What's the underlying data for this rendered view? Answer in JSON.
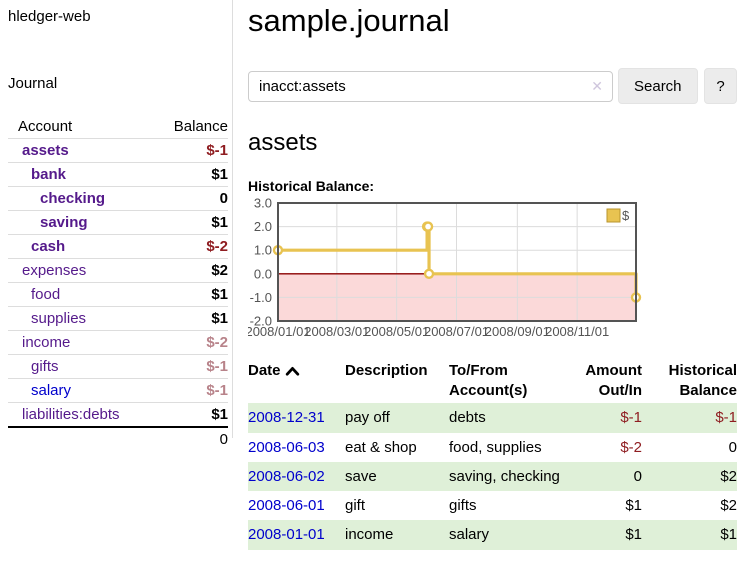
{
  "app": {
    "brand": "hledger-web",
    "nav_journal": "Journal"
  },
  "colors": {
    "link_purple": "#551a8b",
    "link_blue": "#0000cc",
    "negative": "#8f1d21",
    "negative_dim": "#b8838a",
    "row_green": "#dff0d8",
    "text": "#000000",
    "axis_text": "#545454"
  },
  "sidebar": {
    "headers": {
      "account": "Account",
      "balance": "Balance"
    },
    "accounts": [
      {
        "name": "assets",
        "balance": "$-1",
        "depth": 0,
        "bold": true,
        "negative": true,
        "dim": false,
        "link": "purple"
      },
      {
        "name": "bank",
        "balance": "$1",
        "depth": 1,
        "bold": true,
        "negative": false,
        "dim": false,
        "link": "purple"
      },
      {
        "name": "checking",
        "balance": "0",
        "depth": 2,
        "bold": true,
        "negative": false,
        "dim": false,
        "link": "purple"
      },
      {
        "name": "saving",
        "balance": "$1",
        "depth": 2,
        "bold": true,
        "negative": false,
        "dim": false,
        "link": "purple"
      },
      {
        "name": "cash",
        "balance": "$-2",
        "depth": 1,
        "bold": true,
        "negative": true,
        "dim": false,
        "link": "purple"
      },
      {
        "name": "expenses",
        "balance": "$2",
        "depth": 0,
        "bold": false,
        "negative": false,
        "dim": false,
        "link": "purple"
      },
      {
        "name": "food",
        "balance": "$1",
        "depth": 1,
        "bold": false,
        "negative": false,
        "dim": false,
        "link": "purple"
      },
      {
        "name": "supplies",
        "balance": "$1",
        "depth": 1,
        "bold": false,
        "negative": false,
        "dim": false,
        "link": "purple"
      },
      {
        "name": "income",
        "balance": "$-2",
        "depth": 0,
        "bold": false,
        "negative": true,
        "dim": true,
        "link": "purple"
      },
      {
        "name": "gifts",
        "balance": "$-1",
        "depth": 1,
        "bold": false,
        "negative": true,
        "dim": true,
        "link": "purple"
      },
      {
        "name": "salary",
        "balance": "$-1",
        "depth": 1,
        "bold": false,
        "negative": true,
        "dim": true,
        "link": "blue"
      },
      {
        "name": "liabilities:debts",
        "balance": "$1",
        "depth": 0,
        "bold": false,
        "negative": false,
        "dim": false,
        "link": "purple"
      }
    ],
    "total": "0"
  },
  "header": {
    "title": "sample.journal"
  },
  "search": {
    "value": "inacct:assets",
    "clear_icon": "✕",
    "button": "Search",
    "help_button": "?"
  },
  "register": {
    "heading": "assets",
    "chart_label": "Historical Balance:",
    "table": {
      "headers": {
        "date": "Date",
        "description": "Description",
        "tofrom": [
          "To/From",
          "Account(s)"
        ],
        "amount": [
          "Amount",
          "Out/In"
        ],
        "balance": [
          "Historical",
          "Balance"
        ]
      },
      "rows": [
        {
          "date": "2008-12-31",
          "description": "pay off",
          "accounts": "debts",
          "amount": "$-1",
          "amount_negative": true,
          "balance": "$-1",
          "balance_negative": true
        },
        {
          "date": "2008-06-03",
          "description": "eat & shop",
          "accounts": "food, supplies",
          "amount": "$-2",
          "amount_negative": true,
          "balance": "0",
          "balance_negative": false
        },
        {
          "date": "2008-06-02",
          "description": "save",
          "accounts": "saving, checking",
          "amount": "0",
          "amount_negative": false,
          "balance": "$2",
          "balance_negative": false
        },
        {
          "date": "2008-06-01",
          "description": "gift",
          "accounts": "gifts",
          "amount": "$1",
          "amount_negative": false,
          "balance": "$2",
          "balance_negative": false
        },
        {
          "date": "2008-01-01",
          "description": "income",
          "accounts": "salary",
          "amount": "$1",
          "amount_negative": false,
          "balance": "$1",
          "balance_negative": false
        }
      ]
    }
  },
  "chart_data": {
    "type": "line",
    "title": "Historical Balance",
    "step": true,
    "series": [
      {
        "name": "$",
        "color": "#e8c351",
        "points": [
          [
            "2008-01-01",
            1
          ],
          [
            "2008-06-01",
            2
          ],
          [
            "2008-06-02",
            2
          ],
          [
            "2008-06-03",
            0
          ],
          [
            "2008-12-31",
            -1
          ]
        ]
      }
    ],
    "x_range": [
      "2008-01-01",
      "2008-12-31"
    ],
    "ylim": [
      -2,
      3
    ],
    "x_ticks": [
      "2008/01/01",
      "2008/03/01",
      "2008/05/01",
      "2008/07/01",
      "2008/09/01",
      "2008/11/01"
    ],
    "y_ticks": [
      "3.0",
      "2.0",
      "1.0",
      "0.0",
      "-1.0",
      "-2.0"
    ],
    "legend": {
      "label": "$",
      "position": "top-right"
    },
    "grid": true,
    "zero_line_color": "#8b0000",
    "negative_region_color": "#fbd9d9",
    "border_color": "#545454"
  }
}
